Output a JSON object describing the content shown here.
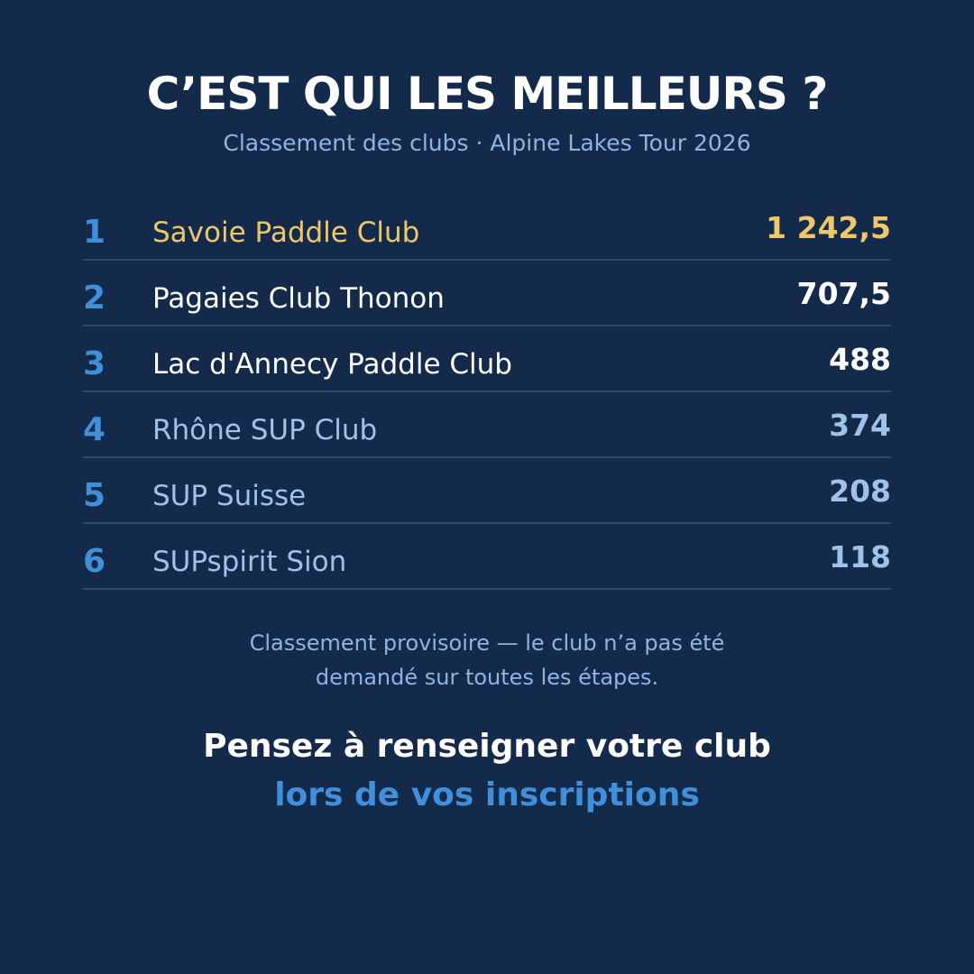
{
  "header": {
    "title": "C’EST QUI LES MEILLEURS ?",
    "subtitle": "Classement des clubs · Alpine Lakes Tour 2026"
  },
  "ranking": [
    {
      "rank": "1",
      "club": "Savoie Paddle Club",
      "score": "1 242,5"
    },
    {
      "rank": "2",
      "club": "Pagaies Club Thonon",
      "score": "707,5"
    },
    {
      "rank": "3",
      "club": "Lac d'Annecy Paddle Club",
      "score": "488"
    },
    {
      "rank": "4",
      "club": "Rhône SUP Club",
      "score": "374"
    },
    {
      "rank": "5",
      "club": "SUP Suisse",
      "score": "208"
    },
    {
      "rank": "6",
      "club": "SUPspirit Sion",
      "score": "118"
    }
  ],
  "footer": {
    "note_line1": "Classement provisoire — le club n’a pas été",
    "note_line2": "demandé sur toutes les étapes.",
    "cta_line1": "Pensez à renseigner votre club",
    "cta_line2": "lors de vos inscriptions"
  },
  "colors": {
    "background": "#132a4b",
    "gold": "#ecc76c",
    "accent_blue": "#3f8fda",
    "muted_text": "#9fc1ea"
  }
}
